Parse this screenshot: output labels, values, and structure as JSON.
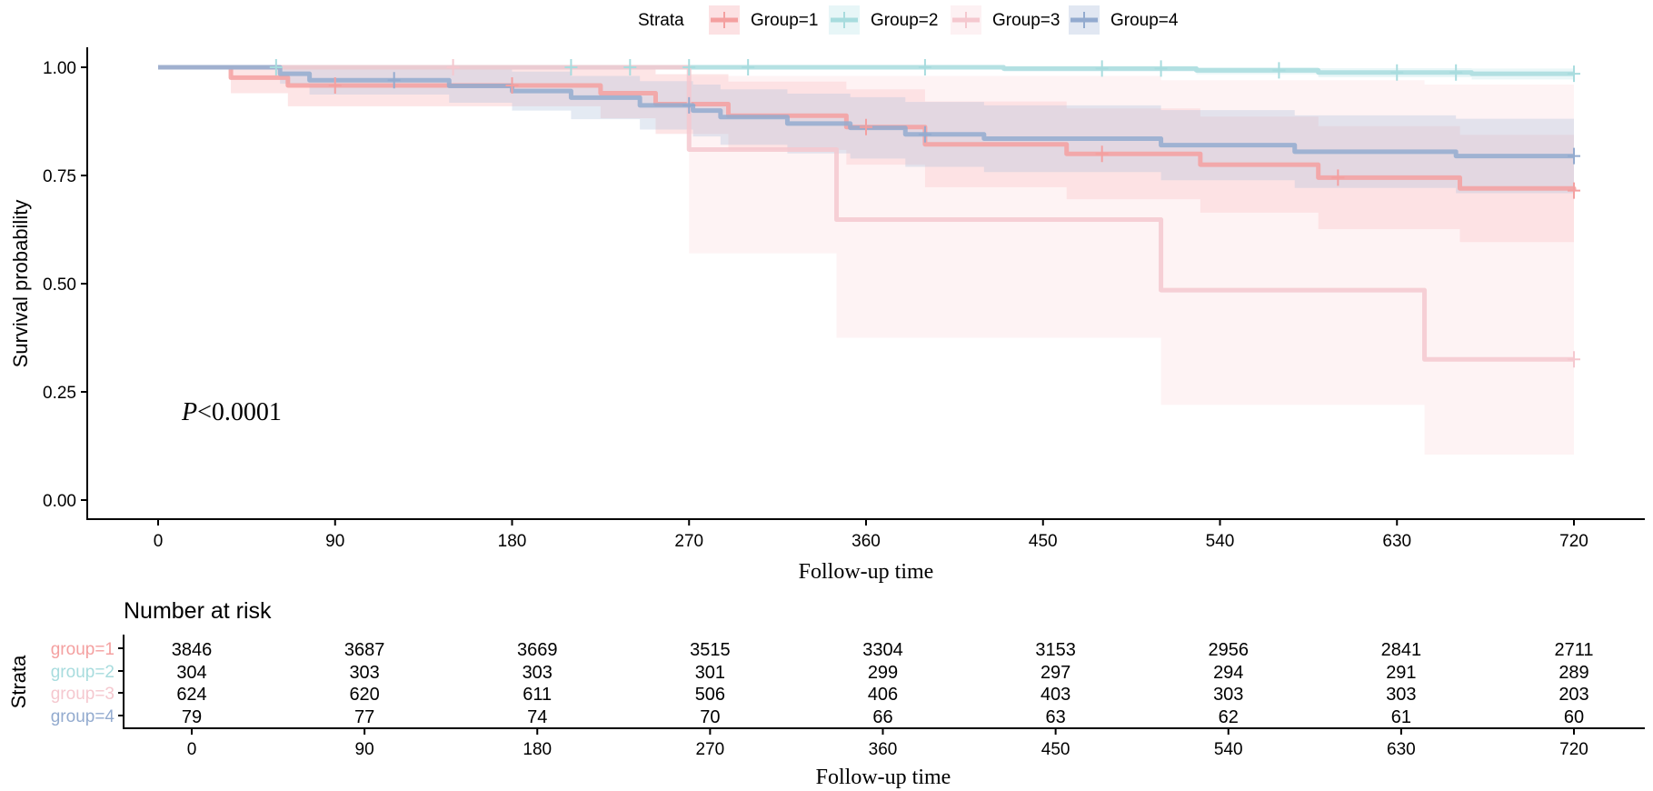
{
  "chart_data": {
    "type": "line",
    "subtype": "kaplan-meier",
    "xlabel": "Follow-up time",
    "ylabel": "Survival probability",
    "xlim": [
      0,
      720
    ],
    "ylim": [
      0,
      1
    ],
    "x_ticks": [
      0,
      90,
      180,
      270,
      360,
      450,
      540,
      630,
      720
    ],
    "y_ticks": [
      "0.00",
      "0.25",
      "0.50",
      "0.75",
      "1.00"
    ],
    "grid": false,
    "legend": {
      "title": "Strata",
      "placement": "top"
    },
    "annotation": {
      "italic": "P",
      "text": "<0.0001"
    },
    "series": [
      {
        "name": "Group=1",
        "color": "#F4A0A0",
        "fill": "#F8B4B8",
        "times": [
          0,
          37,
          66,
          225,
          253,
          290,
          350,
          390,
          462,
          530,
          590,
          662,
          720
        ],
        "survival": [
          1,
          0.976,
          0.958,
          0.94,
          0.915,
          0.888,
          0.862,
          0.822,
          0.8,
          0.775,
          0.745,
          0.72,
          0.715
        ],
        "lower": [
          1,
          0.94,
          0.91,
          0.882,
          0.846,
          0.809,
          0.775,
          0.723,
          0.695,
          0.664,
          0.626,
          0.596,
          0.59
        ],
        "upper": [
          1,
          1,
          1,
          0.998,
          0.984,
          0.967,
          0.949,
          0.921,
          0.905,
          0.886,
          0.864,
          0.844,
          0.84
        ],
        "censored": [
          90,
          180,
          360,
          480,
          600,
          720
        ]
      },
      {
        "name": "Group=2",
        "color": "#A8DCDE",
        "fill": "#C4E9EA",
        "times": [
          0,
          430,
          528,
          590,
          668,
          720
        ],
        "survival": [
          1,
          0.997,
          0.993,
          0.988,
          0.985,
          0.985
        ],
        "lower": [
          1,
          0.99,
          0.984,
          0.977,
          0.972,
          0.972
        ],
        "upper": [
          1,
          1,
          1,
          0.998,
          0.997,
          0.997
        ],
        "censored": [
          60,
          210,
          240,
          270,
          300,
          390,
          480,
          510,
          570,
          630,
          660,
          720
        ]
      },
      {
        "name": "Group=3",
        "color": "#F5C8CF",
        "fill": "#FBDCE0",
        "times": [
          0,
          270,
          345,
          510,
          644,
          720
        ],
        "survival": [
          1,
          0.81,
          0.648,
          0.485,
          0.325,
          0.325
        ],
        "lower": [
          1,
          0.57,
          0.375,
          0.22,
          0.105,
          0.105
        ],
        "upper": [
          1,
          0.98,
          0.98,
          0.97,
          0.96,
          0.96
        ],
        "censored": [
          150,
          720
        ]
      },
      {
        "name": "Group=4",
        "color": "#93ABCF",
        "fill": "#B3C4DE",
        "times": [
          0,
          62,
          77,
          148,
          180,
          210,
          245,
          272,
          286,
          320,
          352,
          380,
          420,
          510,
          578,
          660,
          720
        ],
        "survival": [
          1,
          0.985,
          0.97,
          0.957,
          0.945,
          0.93,
          0.912,
          0.9,
          0.885,
          0.87,
          0.86,
          0.845,
          0.835,
          0.82,
          0.805,
          0.795,
          0.795
        ],
        "lower": [
          1,
          0.962,
          0.937,
          0.918,
          0.9,
          0.88,
          0.856,
          0.84,
          0.821,
          0.801,
          0.789,
          0.77,
          0.758,
          0.739,
          0.721,
          0.709,
          0.709
        ],
        "upper": [
          1,
          1,
          1,
          0.996,
          0.99,
          0.98,
          0.968,
          0.96,
          0.949,
          0.939,
          0.931,
          0.92,
          0.912,
          0.901,
          0.889,
          0.881,
          0.881
        ],
        "censored": [
          120,
          270,
          390,
          720
        ]
      }
    ],
    "risk_table": {
      "title": "Number at risk",
      "ylabel": "Strata",
      "xlabel": "Follow-up time",
      "times": [
        0,
        90,
        180,
        270,
        360,
        450,
        540,
        630,
        720
      ],
      "rows": [
        {
          "label": "group=1",
          "color": "#F4A0A0",
          "values": [
            3846,
            3687,
            3669,
            3515,
            3304,
            3153,
            2956,
            2841,
            2711
          ]
        },
        {
          "label": "group=2",
          "color": "#A8DCDE",
          "values": [
            304,
            303,
            303,
            301,
            299,
            297,
            294,
            291,
            289
          ]
        },
        {
          "label": "group=3",
          "color": "#F5C8CF",
          "values": [
            624,
            620,
            611,
            506,
            406,
            403,
            303,
            303,
            203
          ]
        },
        {
          "label": "group=4",
          "color": "#93ABCF",
          "values": [
            79,
            77,
            74,
            70,
            66,
            63,
            62,
            61,
            60
          ]
        }
      ]
    }
  }
}
